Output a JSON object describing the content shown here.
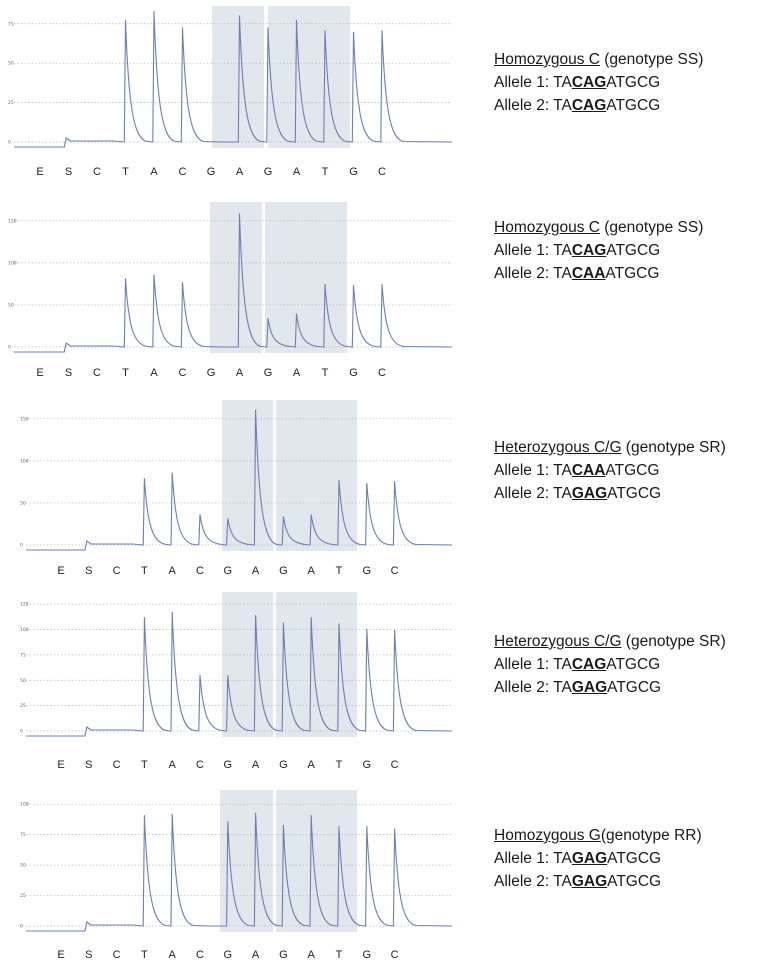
{
  "panels": [
    {
      "heading_underlined": "Homozygous C",
      "heading_rest": " (genotype SS)",
      "allele1": {
        "prefix": "Allele 1: TA",
        "codon": "CAG",
        "suffix": "ATGCG"
      },
      "allele2": {
        "prefix": "Allele 2: TA",
        "codon": "CAG",
        "suffix": "ATGCG"
      },
      "yticks": [
        "0",
        "25",
        "50",
        "75"
      ]
    },
    {
      "heading_underlined": "Homozygous C",
      "heading_rest": " (genotype SS)",
      "allele1": {
        "prefix": "Allele 1: TA",
        "codon": "CAG",
        "suffix": "ATGCG"
      },
      "allele2": {
        "prefix": "Allele 2: TA",
        "codon": "CAA",
        "suffix": "ATGCG"
      },
      "yticks": [
        "0",
        "50",
        "100",
        "150"
      ]
    },
    {
      "heading_underlined": "Heterozygous C/G",
      "heading_rest": " (genotype SR)",
      "allele1": {
        "prefix": "Allele 1: TA",
        "codon": "CAA",
        "suffix": "ATGCG"
      },
      "allele2": {
        "prefix": "Allele 2: TA",
        "codon": "GAG",
        "suffix": "ATGCG"
      },
      "yticks": [
        "0",
        "50",
        "100",
        "150"
      ]
    },
    {
      "heading_underlined": "Heterozygous C/G",
      "heading_rest": " (genotype SR)",
      "allele1": {
        "prefix": "Allele 1: TA",
        "codon": "CAG",
        "suffix": "ATGCG"
      },
      "allele2": {
        "prefix": "Allele 2: TA",
        "codon": "GAG",
        "suffix": "ATGCG"
      },
      "yticks": [
        "0",
        "25",
        "50",
        "75",
        "100",
        "125"
      ]
    },
    {
      "heading_underlined": "Homozygous G",
      "heading_rest": "(genotype RR)",
      "allele1": {
        "prefix": "Allele 1: TA",
        "codon": "GAG",
        "suffix": "ATGCG"
      },
      "allele2": {
        "prefix": "Allele 2: TA",
        "codon": "GAG",
        "suffix": "ATGCG"
      },
      "yticks": [
        "0",
        "25",
        "50",
        "75",
        "100"
      ]
    }
  ],
  "chart_data": [
    {
      "type": "line",
      "dispensation_order": [
        "E",
        "S",
        "C",
        "T",
        "A",
        "C",
        "G",
        "A",
        "G",
        "A",
        "T",
        "G",
        "C"
      ],
      "peaks": [
        0,
        0,
        0,
        82,
        88,
        77,
        0,
        85,
        77,
        82,
        75,
        74,
        75
      ],
      "highlighted_regions": [
        [
          5,
          6
        ],
        [
          7,
          9
        ]
      ],
      "ylim": [
        0,
        90
      ]
    },
    {
      "type": "line",
      "dispensation_order": [
        "E",
        "S",
        "C",
        "T",
        "A",
        "C",
        "G",
        "A",
        "G",
        "A",
        "T",
        "G",
        "C"
      ],
      "peaks": [
        0,
        0,
        0,
        72,
        76,
        68,
        0,
        140,
        30,
        35,
        66,
        65,
        66
      ],
      "highlighted_regions": [
        [
          5,
          6
        ],
        [
          7,
          9
        ]
      ],
      "ylim": [
        0,
        150
      ]
    },
    {
      "type": "line",
      "dispensation_order": [
        "E",
        "S",
        "C",
        "T",
        "A",
        "C",
        "G",
        "A",
        "G",
        "A",
        "T",
        "G",
        "C"
      ],
      "peaks": [
        0,
        0,
        0,
        70,
        76,
        32,
        28,
        142,
        30,
        32,
        68,
        65,
        67
      ],
      "highlighted_regions": [
        [
          5,
          6
        ],
        [
          7,
          9
        ]
      ],
      "ylim": [
        0,
        150
      ]
    },
    {
      "type": "line",
      "dispensation_order": [
        "E",
        "S",
        "C",
        "T",
        "A",
        "C",
        "G",
        "A",
        "G",
        "A",
        "T",
        "G",
        "C"
      ],
      "peaks": [
        0,
        0,
        0,
        108,
        113,
        53,
        53,
        110,
        103,
        108,
        102,
        97,
        96
      ],
      "highlighted_regions": [
        [
          5,
          6
        ],
        [
          7,
          9
        ]
      ],
      "ylim": [
        0,
        130
      ]
    },
    {
      "type": "line",
      "dispensation_order": [
        "E",
        "S",
        "C",
        "T",
        "A",
        "C",
        "G",
        "A",
        "G",
        "A",
        "T",
        "G",
        "C"
      ],
      "peaks": [
        0,
        0,
        0,
        91,
        92,
        0,
        86,
        93,
        83,
        91,
        82,
        82,
        80
      ],
      "highlighted_regions": [
        [
          5,
          6
        ],
        [
          7,
          9
        ]
      ],
      "ylim": [
        0,
        110
      ]
    }
  ],
  "colors": {
    "trace": "#6b7fb3",
    "highlight": "#e2e7ee",
    "grid": "#b7b7b7"
  }
}
